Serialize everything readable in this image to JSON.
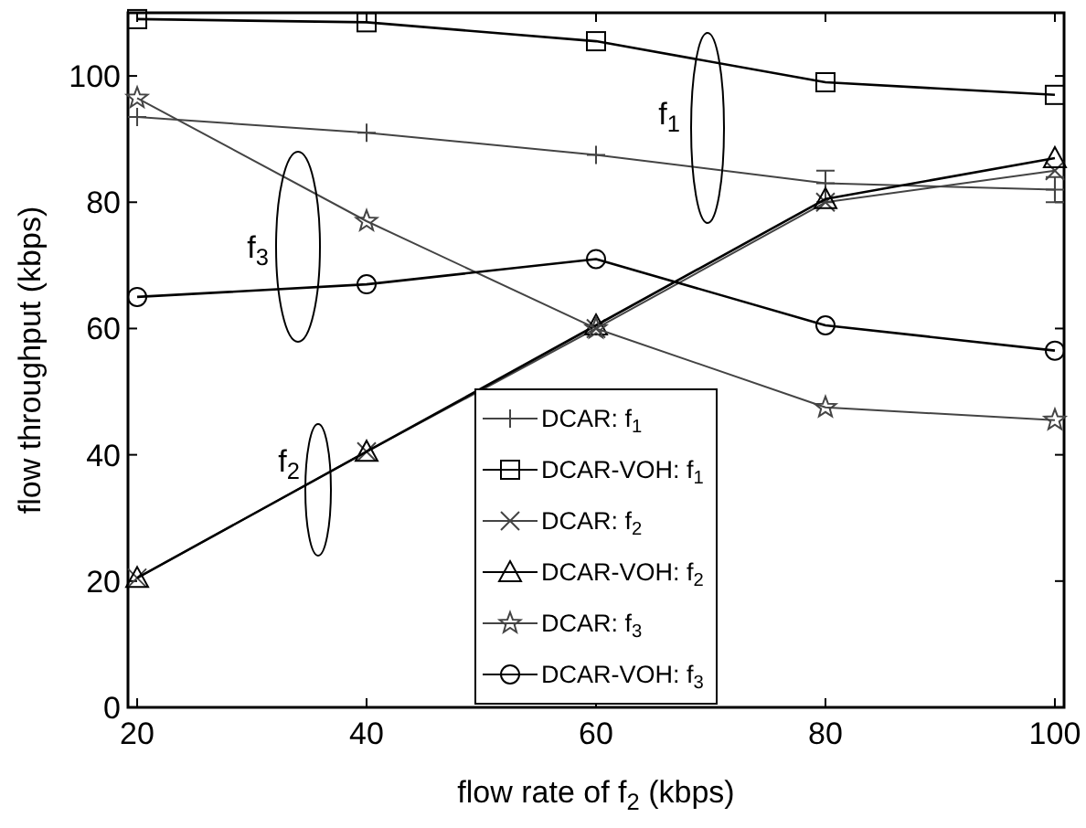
{
  "chart_data": {
    "type": "line",
    "xlabel": "flow rate of f$_{2}$ (kbps)",
    "ylabel": "flow throughput (kbps)",
    "x": [
      20,
      40,
      60,
      80,
      100
    ],
    "xlim": [
      19.2,
      100.8
    ],
    "xticks": [
      20,
      40,
      60,
      80,
      100
    ],
    "ylim": [
      0,
      110
    ],
    "yticks": [
      0,
      20,
      40,
      60,
      80,
      100
    ],
    "grid": false,
    "legend": "bottom",
    "series": [
      {
        "name": "DCAR: f$_{1}$",
        "color": "#444444",
        "marker": "cross",
        "values": [
          93.5,
          91,
          87.5,
          83,
          82
        ],
        "errors": [
          null,
          null,
          null,
          [
            80,
            85
          ],
          [
            80,
            84
          ]
        ]
      },
      {
        "name": "DCAR-VOH: f$_{1}$",
        "color": "#000000",
        "marker": "square",
        "values": [
          109,
          108.5,
          105.5,
          99,
          97
        ]
      },
      {
        "name": "DCAR: f$_{2}$",
        "color": "#444444",
        "marker": "x",
        "values": [
          20.5,
          40.5,
          60,
          80,
          85
        ]
      },
      {
        "name": "DCAR-VOH: f$_{2}$",
        "color": "#000000",
        "marker": "triangle",
        "values": [
          20.5,
          40.5,
          60.5,
          80.5,
          87
        ]
      },
      {
        "name": "DCAR: f$_{3}$",
        "color": "#444444",
        "marker": "star",
        "values": [
          96.5,
          77,
          60,
          47.5,
          45.5
        ]
      },
      {
        "name": "DCAR-VOH: f$_{3}$",
        "color": "#000000",
        "marker": "circle",
        "values": [
          65,
          67,
          71,
          60.5,
          56.5
        ]
      }
    ],
    "annotations": [
      "f$_{1}$",
      "f$_{3}$",
      "f$_{2}$"
    ]
  }
}
